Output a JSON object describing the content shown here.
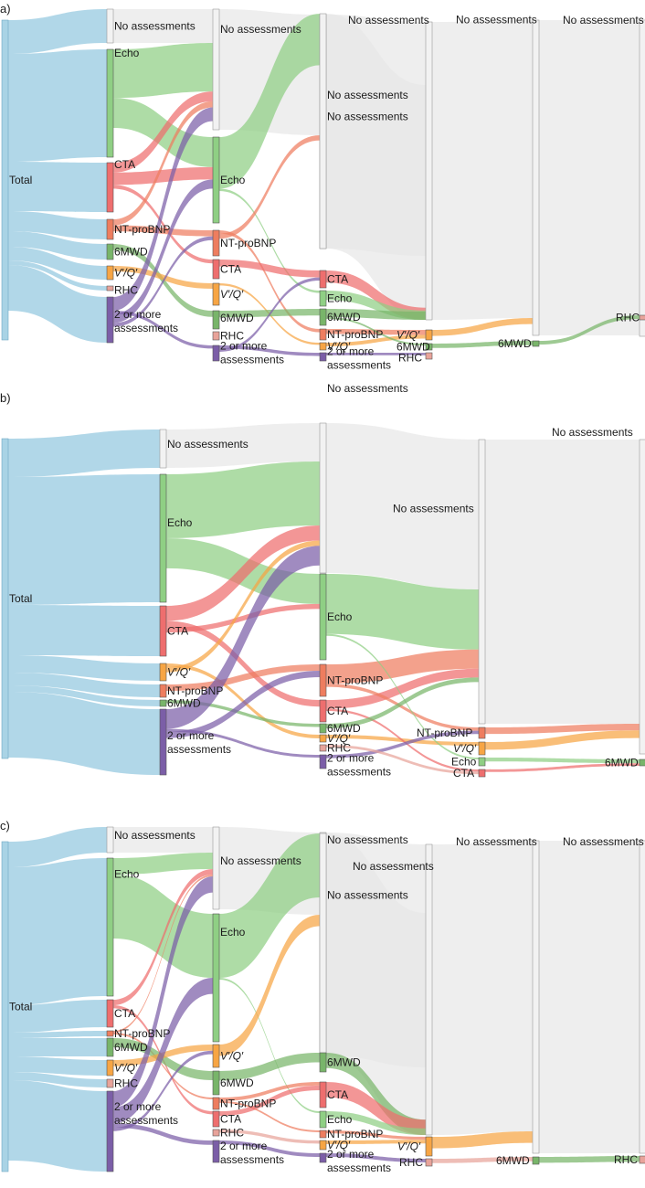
{
  "colors": {
    "total": "#a9d3e5",
    "none": "#e8e8e8",
    "echo": "#8fcf84",
    "cta": "#ee6e6e",
    "ntprobnp": "#ee7d5f",
    "vq": "#f7a544",
    "mwd": "#78b56a",
    "rhc": "#e8a39a",
    "multi": "#7b5ea7"
  },
  "panels": [
    {
      "label": "a)",
      "columns": [
        {
          "nodes": [
            {
              "key": "total",
              "text": "Total"
            }
          ]
        },
        {
          "nodes": [
            {
              "key": "none",
              "text": "No assessments"
            },
            {
              "key": "echo",
              "text": "Echo"
            },
            {
              "key": "cta",
              "text": "CTA"
            },
            {
              "key": "ntprobnp",
              "text": "NT-proBNP"
            },
            {
              "key": "mwd",
              "text": "6MWD"
            },
            {
              "key": "vq",
              "text": "V′/Q′"
            },
            {
              "key": "rhc",
              "text": "RHC"
            },
            {
              "key": "multi",
              "text": "2 or more assessments"
            }
          ]
        },
        {
          "nodes": [
            {
              "key": "none",
              "text": "No assessments"
            },
            {
              "key": "echo",
              "text": "Echo"
            },
            {
              "key": "ntprobnp",
              "text": "NT-proBNP"
            },
            {
              "key": "cta",
              "text": "CTA"
            },
            {
              "key": "vq",
              "text": "V′/Q′"
            },
            {
              "key": "mwd",
              "text": "6MWD"
            },
            {
              "key": "rhc",
              "text": "RHC"
            },
            {
              "key": "multi",
              "text": "2 or more assessments"
            }
          ]
        },
        {
          "nodes": [
            {
              "key": "none",
              "text": "No assessments"
            },
            {
              "key": "none",
              "text": "No assessments"
            },
            {
              "key": "cta",
              "text": "CTA"
            },
            {
              "key": "echo",
              "text": "Echo"
            },
            {
              "key": "mwd",
              "text": "6MWD"
            },
            {
              "key": "ntprobnp",
              "text": "NT-proBNP"
            },
            {
              "key": "vq",
              "text": "V′/Q′"
            },
            {
              "key": "multi",
              "text": "2 or more assessments"
            }
          ]
        },
        {
          "nodes": [
            {
              "key": "none",
              "text": "No assessments"
            },
            {
              "key": "vq",
              "text": "V′/Q′"
            },
            {
              "key": "mwd",
              "text": "6MWD"
            },
            {
              "key": "rhc",
              "text": "RHC"
            }
          ]
        },
        {
          "nodes": [
            {
              "key": "none",
              "text": "No assessments"
            },
            {
              "key": "mwd",
              "text": "6MWD"
            }
          ]
        },
        {
          "nodes": [
            {
              "key": "none",
              "text": "No assessments"
            },
            {
              "key": "rhc",
              "text": "RHC"
            }
          ]
        }
      ]
    },
    {
      "label": "b)",
      "columns": [
        {
          "nodes": [
            {
              "key": "total",
              "text": "Total"
            }
          ]
        },
        {
          "nodes": [
            {
              "key": "none",
              "text": "No assessments"
            },
            {
              "key": "echo",
              "text": "Echo"
            },
            {
              "key": "cta",
              "text": "CTA"
            },
            {
              "key": "vq",
              "text": "V′/Q′"
            },
            {
              "key": "ntprobnp",
              "text": "NT-proBNP"
            },
            {
              "key": "mwd",
              "text": "6MWD"
            },
            {
              "key": "multi",
              "text": "2 or more assessments"
            }
          ]
        },
        {
          "nodes": [
            {
              "key": "none",
              "text": "No assessments"
            },
            {
              "key": "echo",
              "text": "Echo"
            },
            {
              "key": "ntprobnp",
              "text": "NT-proBNP"
            },
            {
              "key": "cta",
              "text": "CTA"
            },
            {
              "key": "mwd",
              "text": "6MWD"
            },
            {
              "key": "vq",
              "text": "V′/Q′"
            },
            {
              "key": "rhc",
              "text": "RHC"
            },
            {
              "key": "multi",
              "text": "2 or more assessments"
            }
          ]
        },
        {
          "nodes": [
            {
              "key": "none",
              "text": "No assessments"
            },
            {
              "key": "ntprobnp",
              "text": "NT-proBNP"
            },
            {
              "key": "vq",
              "text": "V′/Q′"
            },
            {
              "key": "echo",
              "text": "Echo"
            },
            {
              "key": "cta",
              "text": "CTA"
            }
          ]
        },
        {
          "nodes": [
            {
              "key": "none",
              "text": "No assessments"
            },
            {
              "key": "mwd",
              "text": "6MWD"
            }
          ]
        }
      ]
    },
    {
      "label": "c)",
      "columns": [
        {
          "nodes": [
            {
              "key": "total",
              "text": "Total"
            }
          ]
        },
        {
          "nodes": [
            {
              "key": "none",
              "text": "No assessments"
            },
            {
              "key": "echo",
              "text": "Echo"
            },
            {
              "key": "cta",
              "text": "CTA"
            },
            {
              "key": "ntprobnp",
              "text": "NT-proBNP"
            },
            {
              "key": "mwd",
              "text": "6MWD"
            },
            {
              "key": "vq",
              "text": "V′/Q′"
            },
            {
              "key": "rhc",
              "text": "RHC"
            },
            {
              "key": "multi",
              "text": "2 or more assessments"
            }
          ]
        },
        {
          "nodes": [
            {
              "key": "none",
              "text": "No assessments"
            },
            {
              "key": "echo",
              "text": "Echo"
            },
            {
              "key": "vq",
              "text": "V′/Q′"
            },
            {
              "key": "mwd",
              "text": "6MWD"
            },
            {
              "key": "ntprobnp",
              "text": "NT-proBNP"
            },
            {
              "key": "cta",
              "text": "CTA"
            },
            {
              "key": "rhc",
              "text": "RHC"
            },
            {
              "key": "multi",
              "text": "2 or more assessments"
            }
          ]
        },
        {
          "nodes": [
            {
              "key": "none",
              "text": "No assessments"
            },
            {
              "key": "none",
              "text": "No assessments"
            },
            {
              "key": "mwd",
              "text": "6MWD"
            },
            {
              "key": "cta",
              "text": "CTA"
            },
            {
              "key": "echo",
              "text": "Echo"
            },
            {
              "key": "ntprobnp",
              "text": "NT-proBNP"
            },
            {
              "key": "vq",
              "text": "V′/Q′"
            },
            {
              "key": "multi",
              "text": "2 or more assessments"
            }
          ]
        },
        {
          "nodes": [
            {
              "key": "none",
              "text": "No assessments"
            },
            {
              "key": "vq",
              "text": "V′/Q′"
            },
            {
              "key": "rhc",
              "text": "RHC"
            }
          ]
        },
        {
          "nodes": [
            {
              "key": "none",
              "text": "No assessments"
            },
            {
              "key": "mwd",
              "text": "6MWD"
            }
          ]
        },
        {
          "nodes": [
            {
              "key": "none",
              "text": "No assessments"
            },
            {
              "key": "rhc",
              "text": "RHC"
            }
          ]
        }
      ]
    }
  ]
}
